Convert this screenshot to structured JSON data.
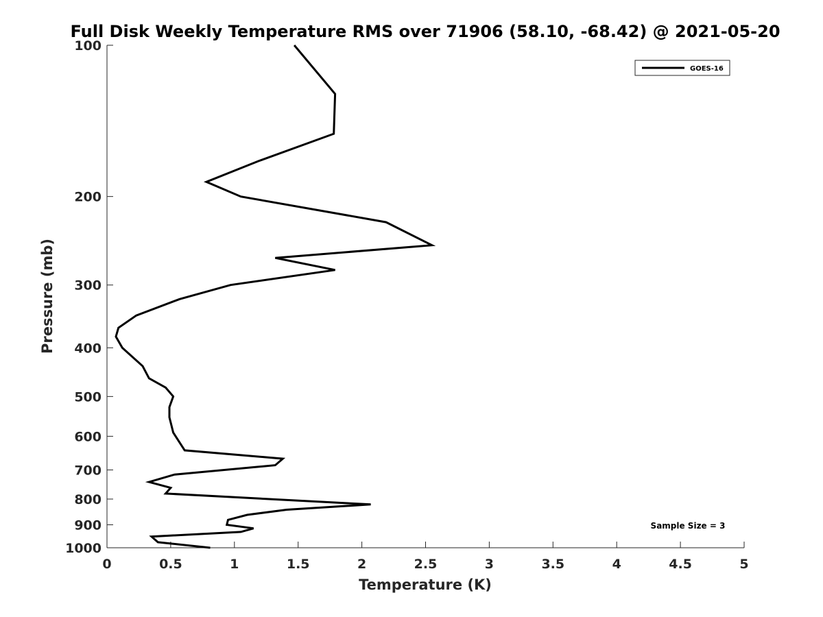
{
  "chart_data": {
    "type": "line",
    "title": "Full Disk Weekly Temperature RMS over 71906 (58.10, -68.42) @ 2021-05-20",
    "xlabel": "Temperature (K)",
    "ylabel": "Pressure (mb)",
    "xlim": [
      0,
      5
    ],
    "ylim": [
      100,
      1000
    ],
    "y_scale": "log",
    "y_reversed": true,
    "x_ticks": [
      "0",
      "0.5",
      "1",
      "1.5",
      "2",
      "2.5",
      "3",
      "3.5",
      "4",
      "4.5",
      "5"
    ],
    "y_ticks": [
      "100",
      "200",
      "300",
      "400",
      "500",
      "600",
      "700",
      "800",
      "900",
      "1000"
    ],
    "grid": false,
    "legend_position": "top-right",
    "annotation": "Sample Size = 3",
    "series": [
      {
        "name": "GOES-16",
        "color": "#000000",
        "points": [
          {
            "x": 1.47,
            "p": 100
          },
          {
            "x": 1.79,
            "p": 125
          },
          {
            "x": 1.78,
            "p": 150
          },
          {
            "x": 1.19,
            "p": 170
          },
          {
            "x": 0.78,
            "p": 187
          },
          {
            "x": 1.05,
            "p": 200
          },
          {
            "x": 2.19,
            "p": 225
          },
          {
            "x": 2.55,
            "p": 250
          },
          {
            "x": 1.32,
            "p": 265
          },
          {
            "x": 1.79,
            "p": 280
          },
          {
            "x": 0.97,
            "p": 300
          },
          {
            "x": 0.57,
            "p": 320
          },
          {
            "x": 0.23,
            "p": 345
          },
          {
            "x": 0.09,
            "p": 365
          },
          {
            "x": 0.07,
            "p": 380
          },
          {
            "x": 0.12,
            "p": 400
          },
          {
            "x": 0.28,
            "p": 435
          },
          {
            "x": 0.33,
            "p": 460
          },
          {
            "x": 0.46,
            "p": 480
          },
          {
            "x": 0.52,
            "p": 500
          },
          {
            "x": 0.49,
            "p": 525
          },
          {
            "x": 0.49,
            "p": 550
          },
          {
            "x": 0.52,
            "p": 590
          },
          {
            "x": 0.61,
            "p": 640
          },
          {
            "x": 1.38,
            "p": 665
          },
          {
            "x": 1.32,
            "p": 685
          },
          {
            "x": 0.53,
            "p": 715
          },
          {
            "x": 0.33,
            "p": 740
          },
          {
            "x": 0.5,
            "p": 760
          },
          {
            "x": 0.46,
            "p": 780
          },
          {
            "x": 2.07,
            "p": 820
          },
          {
            "x": 1.41,
            "p": 840
          },
          {
            "x": 1.1,
            "p": 860
          },
          {
            "x": 0.95,
            "p": 880
          },
          {
            "x": 0.94,
            "p": 900
          },
          {
            "x": 1.15,
            "p": 915
          },
          {
            "x": 1.05,
            "p": 930
          },
          {
            "x": 0.35,
            "p": 950
          },
          {
            "x": 0.4,
            "p": 975
          },
          {
            "x": 0.81,
            "p": 1000
          }
        ]
      }
    ]
  }
}
